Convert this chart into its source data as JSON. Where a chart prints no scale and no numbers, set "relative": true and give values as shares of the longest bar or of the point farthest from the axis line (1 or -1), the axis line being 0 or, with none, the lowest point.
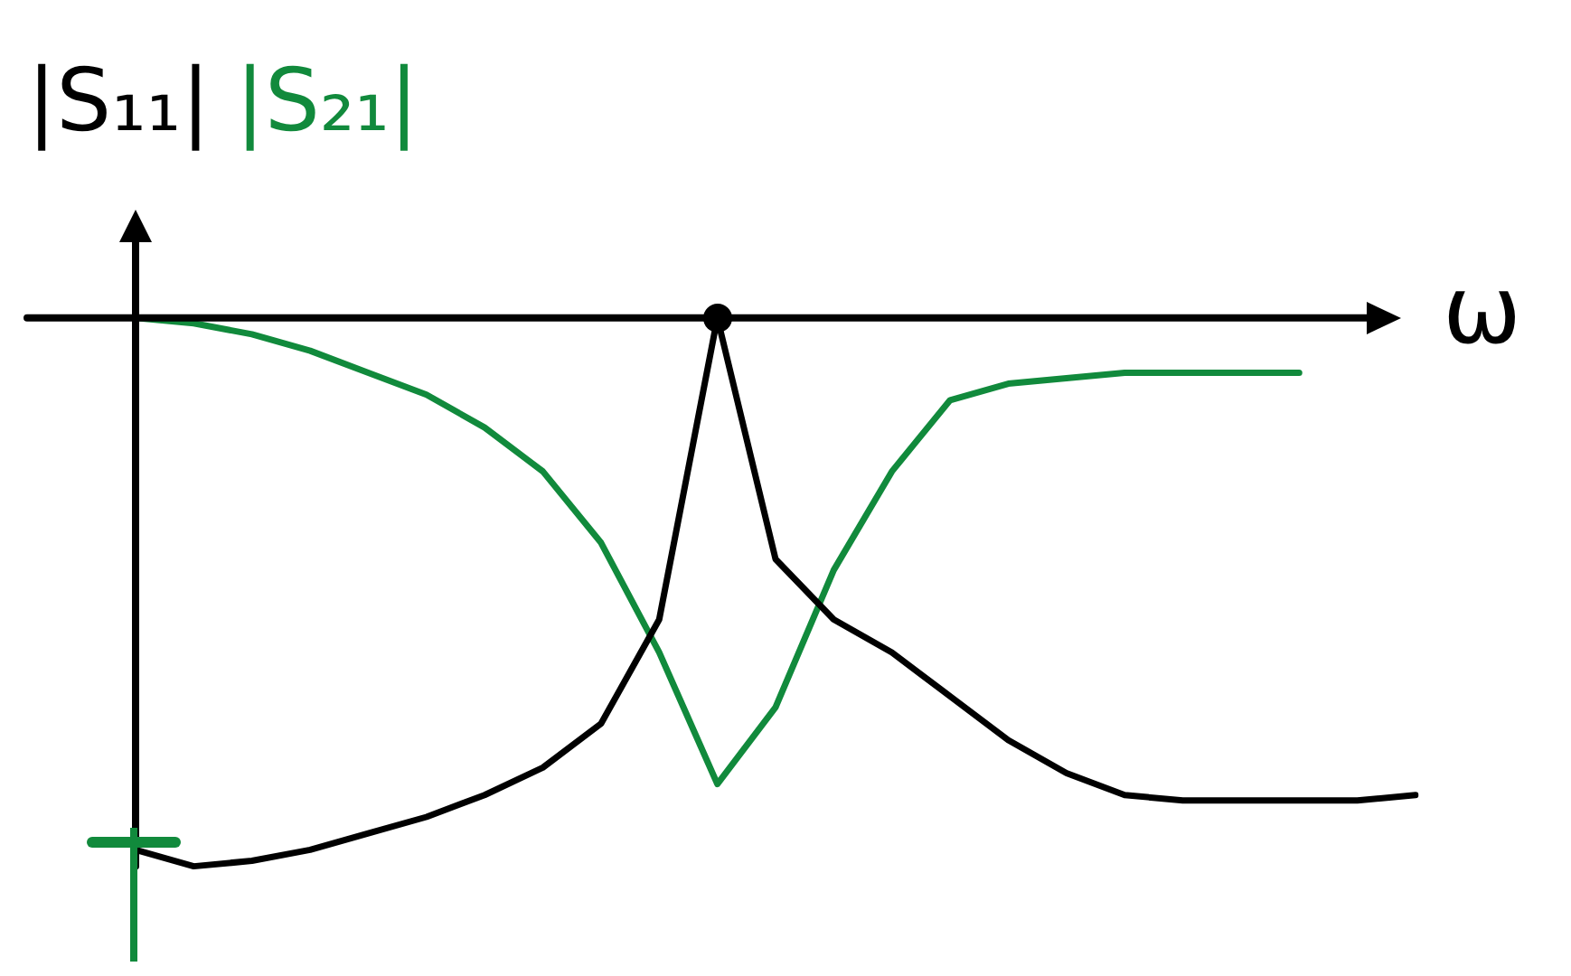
{
  "chart_data": {
    "type": "line",
    "relative": true,
    "xlabel": "ω",
    "legend": false,
    "marker": "none",
    "line_style": "solid",
    "categories": [
      null,
      null,
      null,
      null,
      null,
      null,
      null,
      null,
      null,
      null,
      null,
      null,
      null,
      null,
      null,
      null,
      null,
      null,
      null,
      null,
      null,
      null,
      null
    ],
    "series": [
      {
        "name": "|S₁₁|",
        "color": "#000000",
        "values": [
          -0.97,
          -1,
          -0.99,
          -0.97,
          -0.94,
          -0.91,
          -0.87,
          -0.82,
          -0.74,
          -0.55,
          0,
          -0.44,
          -0.55,
          -0.61,
          -0.69,
          -0.77,
          -0.83,
          -0.87,
          -0.88,
          -0.88,
          -0.88,
          -0.88,
          -0.87
        ]
      },
      {
        "name": "|S₂₁|",
        "color": "#118a3c",
        "values": [
          0,
          -0.01,
          -0.03,
          -0.06,
          -0.1,
          -0.14,
          -0.2,
          -0.28,
          -0.41,
          -0.61,
          -0.85,
          -0.71,
          -0.46,
          -0.28,
          -0.15,
          -0.12,
          -0.11,
          -0.1,
          -0.1,
          -0.1,
          -0.1,
          null,
          null
        ]
      }
    ]
  }
}
